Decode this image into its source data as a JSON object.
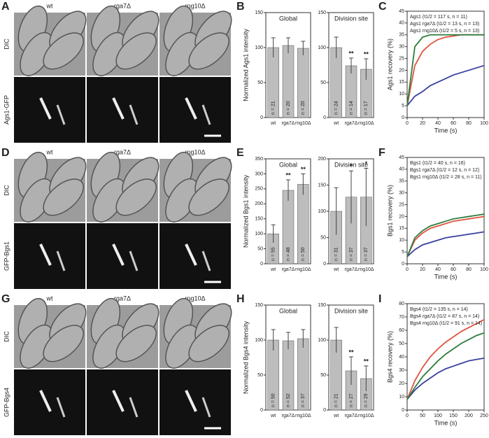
{
  "rows": [
    {
      "images": {
        "letter": "A",
        "columns": [
          "wt",
          "rga7Δ",
          "rng10Δ"
        ],
        "rows": [
          "DIC",
          "Ags1-GFP"
        ]
      },
      "intensity": {
        "letter": "B",
        "ylabel": "Normalized Ags1 intensity",
        "subcharts": [
          {
            "title": "Global",
            "categories": [
              "wt",
              "rga7Δ",
              "rng10Δ"
            ],
            "values": [
              100,
              103,
              99
            ],
            "errors": [
              14,
              11,
              10
            ],
            "n_labels": [
              "n = 21",
              "n = 20",
              "n = 20"
            ],
            "significance": [
              null,
              null,
              null
            ],
            "ylim": [
              0,
              150
            ],
            "yticks": [
              0,
              50,
              100,
              150
            ]
          },
          {
            "title": "Division site",
            "categories": [
              "wt",
              "rga7Δ",
              "rng10Δ"
            ],
            "values": [
              100,
              74,
              69
            ],
            "errors": [
              15,
              11,
              15
            ],
            "n_labels": [
              "n = 24",
              "n = 14",
              "n = 17"
            ],
            "significance": [
              null,
              "**",
              "**"
            ],
            "ylim": [
              0,
              150
            ],
            "yticks": [
              0,
              50,
              100,
              150
            ]
          }
        ]
      },
      "recovery": {
        "letter": "C",
        "type": "line",
        "ylabel": "Ags1 recovery (%)",
        "xlabel": "Time (s)",
        "xlim": [
          0,
          100
        ],
        "xticks": [
          0,
          20,
          40,
          60,
          80,
          100
        ],
        "ylim": [
          0,
          45
        ],
        "yticks": [
          0,
          5,
          10,
          15,
          20,
          25,
          30,
          35,
          40,
          45
        ],
        "x": [
          0,
          10,
          20,
          30,
          40,
          50,
          60,
          70,
          80,
          90,
          100
        ],
        "series": [
          {
            "name": "Ags1 (t1/2 = 117 s, n = 11)",
            "color": "#3a3f9e",
            "values": [
              5,
              9,
              11,
              13.5,
              15,
              16.5,
              18,
              19,
              20,
              21,
              22
            ]
          },
          {
            "name": "Ags1 rga7Δ (t1/2 = 13 s, n = 13)",
            "color": "#e0533e",
            "values": [
              5,
              22,
              28,
              31,
              33,
              34,
              34.5,
              35,
              35,
              35,
              35
            ]
          },
          {
            "name": "Ags1 rng10Δ (t1/2 = 5 s, n = 13)",
            "color": "#2e7d3e",
            "values": [
              5,
              30,
              34,
              35,
              35,
              35,
              35,
              35,
              35,
              35,
              35
            ]
          }
        ]
      }
    },
    {
      "images": {
        "letter": "D",
        "columns": [
          "wt",
          "rga7Δ",
          "rng10Δ"
        ],
        "rows": [
          "DIC",
          "GFP-Bgs1"
        ]
      },
      "intensity": {
        "letter": "E",
        "ylabel": "Normalized Bgs1 intensity",
        "subcharts": [
          {
            "title": "Global",
            "categories": [
              "wt",
              "rga7Δ",
              "rng10Δ"
            ],
            "values": [
              100,
              245,
              265
            ],
            "errors": [
              30,
              35,
              35
            ],
            "n_labels": [
              "n = 55",
              "n = 48",
              "n = 50"
            ],
            "significance": [
              null,
              "**",
              "**"
            ],
            "ylim": [
              0,
              350
            ],
            "yticks": [
              0,
              50,
              100,
              150,
              200,
              250,
              300,
              350
            ]
          },
          {
            "title": "Division site",
            "categories": [
              "wt",
              "rga7Δ",
              "rng10Δ"
            ],
            "values": [
              100,
              127,
              127
            ],
            "errors": [
              45,
              50,
              55
            ],
            "n_labels": [
              "n = 31",
              "n = 37",
              "n = 37"
            ],
            "significance": [
              null,
              "*",
              "*"
            ],
            "ylim": [
              0,
              200
            ],
            "yticks": [
              0,
              50,
              100,
              150,
              200
            ]
          }
        ]
      },
      "recovery": {
        "letter": "F",
        "type": "line",
        "ylabel": "Bgs1 recovery (%)",
        "xlabel": "Time (s)",
        "xlim": [
          0,
          100
        ],
        "xticks": [
          0,
          20,
          40,
          60,
          80,
          100
        ],
        "ylim": [
          0,
          45
        ],
        "yticks": [
          0,
          5,
          10,
          15,
          20,
          25,
          30,
          35,
          40,
          45
        ],
        "x": [
          0,
          10,
          20,
          30,
          40,
          50,
          60,
          70,
          80,
          90,
          100
        ],
        "series": [
          {
            "name": "Bgs1 (t1/2 = 40 s, n = 16)",
            "color": "#3a3f9e",
            "values": [
              3,
              6,
              8,
              9,
              10,
              11,
              11.5,
              12,
              12.5,
              13,
              13.5
            ]
          },
          {
            "name": "Bgs1 rga7Δ (t1/2 = 12 s, n = 12)",
            "color": "#e0533e",
            "values": [
              3,
              10,
              13,
              15,
              16,
              17,
              18,
              18.5,
              19,
              19.5,
              20
            ]
          },
          {
            "name": "Bgs1 rng10Δ (t1/2 = 28 s, n = 11)",
            "color": "#2e7d3e",
            "values": [
              3,
              11,
              14,
              16,
              17,
              18,
              19,
              19.5,
              20,
              20.5,
              21
            ]
          }
        ]
      }
    },
    {
      "images": {
        "letter": "G",
        "columns": [
          "wt",
          "rga7Δ",
          "rng10Δ"
        ],
        "rows": [
          "DIC",
          "GFP-Bgs4"
        ]
      },
      "intensity": {
        "letter": "H",
        "ylabel": "Normalized Bgs4 intensity",
        "subcharts": [
          {
            "title": "Global",
            "categories": [
              "wt",
              "rga7Δ",
              "rng10Δ"
            ],
            "values": [
              100,
              99,
              102
            ],
            "errors": [
              15,
              12,
              13
            ],
            "n_labels": [
              "n = 50",
              "n = 52",
              "n = 37"
            ],
            "significance": [
              null,
              null,
              null
            ],
            "ylim": [
              0,
              150
            ],
            "yticks": [
              0,
              50,
              100,
              150
            ]
          },
          {
            "title": "Division site",
            "categories": [
              "wt",
              "rga7Δ",
              "rng10Δ"
            ],
            "values": [
              100,
              56,
              45
            ],
            "errors": [
              18,
              20,
              18
            ],
            "n_labels": [
              "n = 21",
              "n = 27",
              "n = 29"
            ],
            "significance": [
              null,
              "**",
              "**"
            ],
            "ylim": [
              0,
              150
            ],
            "yticks": [
              0,
              50,
              100,
              150
            ]
          }
        ]
      },
      "recovery": {
        "letter": "I",
        "type": "line",
        "ylabel": "Bgs4 recovery (%)",
        "xlabel": "Time (s)",
        "xlim": [
          0,
          250
        ],
        "xticks": [
          0,
          50,
          100,
          150,
          200,
          250
        ],
        "ylim": [
          0,
          80
        ],
        "yticks": [
          0,
          10,
          20,
          30,
          40,
          50,
          60,
          70,
          80
        ],
        "x": [
          0,
          25,
          50,
          75,
          100,
          125,
          150,
          175,
          200,
          225,
          250
        ],
        "series": [
          {
            "name": "Bgs4 (t1/2 = 135 s, n = 14)",
            "color": "#3a3f9e",
            "values": [
              8,
              15,
              20,
              24,
              28,
              31,
              33,
              35,
              37,
              38,
              39
            ]
          },
          {
            "name": "Bgs4 rga7Δ (t1/2 = 87 s, n = 14)",
            "color": "#e0533e",
            "values": [
              8,
              22,
              32,
              40,
              46,
              51,
              55,
              59,
              62,
              65,
              68
            ]
          },
          {
            "name": "Bgs4 rng10Δ (t1/2 = 91 s, n = 14)",
            "color": "#2e7d3e",
            "values": [
              8,
              17,
              25,
              31,
              37,
              42,
              46,
              50,
              53,
              56,
              58
            ]
          }
        ]
      }
    }
  ]
}
